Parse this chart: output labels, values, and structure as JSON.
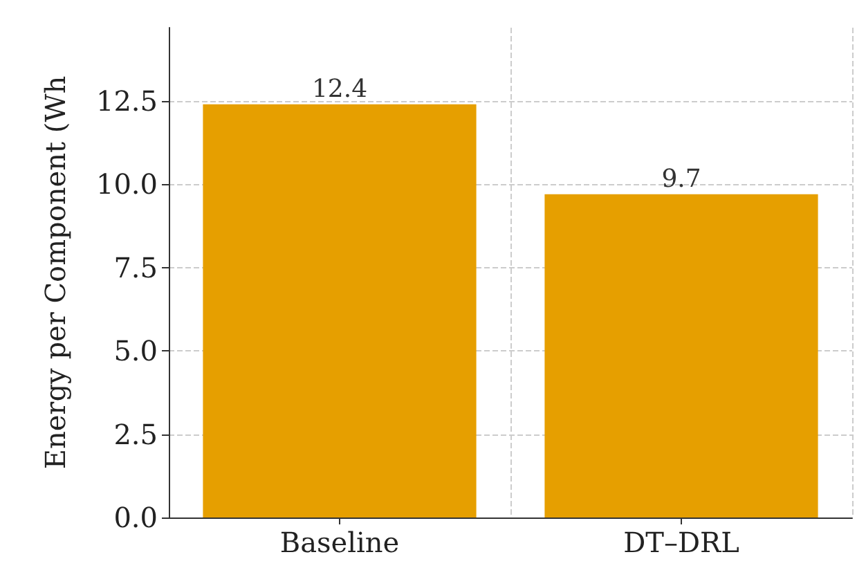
{
  "chart_data": {
    "type": "bar",
    "ylabel": "Energy per Component (Wh",
    "categories": [
      "Baseline",
      "DT–DRL"
    ],
    "values": [
      12.4,
      9.7
    ],
    "color": "#e69f00",
    "ylim": [
      0,
      14.7
    ],
    "yticks": [
      {
        "value": 0,
        "label": "0.0"
      },
      {
        "value": 2.5,
        "label": "2.5"
      },
      {
        "value": 5,
        "label": "5.0"
      },
      {
        "value": 7.5,
        "label": "7.5"
      },
      {
        "value": 10,
        "label": "10.0"
      },
      {
        "value": 12.5,
        "label": "12.5"
      }
    ],
    "grid": true,
    "data_labels": true
  }
}
